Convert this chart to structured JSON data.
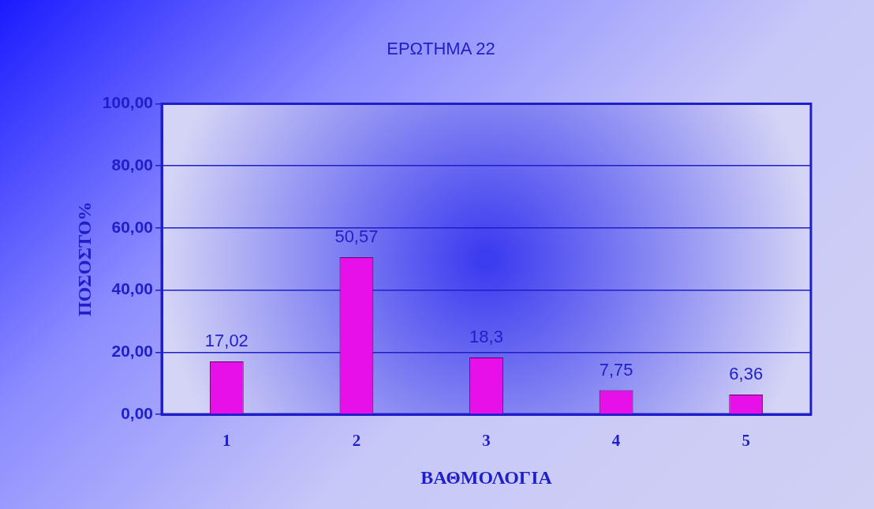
{
  "chart_data": {
    "type": "bar",
    "title": "ΕΡΩΤΗΜΑ 22",
    "xlabel": "ΒΑΘΜΟΛΟΓΙΑ",
    "ylabel": "ΠΟΣΟΣΤΟ%",
    "categories": [
      "1",
      "2",
      "3",
      "4",
      "5"
    ],
    "values": [
      17.02,
      50.57,
      18.3,
      7.75,
      6.36
    ],
    "value_labels": [
      "17,02",
      "50,57",
      "18,3",
      "7,75",
      "6,36"
    ],
    "color": "#e810e8",
    "ylim": [
      0,
      100
    ],
    "yticks": [
      {
        "value": 0,
        "label": "0,00"
      },
      {
        "value": 20,
        "label": "20,00"
      },
      {
        "value": 40,
        "label": "40,00"
      },
      {
        "value": 60,
        "label": "60,00"
      },
      {
        "value": 80,
        "label": "80,00"
      },
      {
        "value": 100,
        "label": "100,00"
      }
    ],
    "grid": "y",
    "legend": false
  }
}
